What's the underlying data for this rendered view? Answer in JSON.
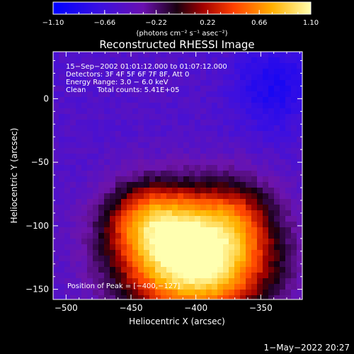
{
  "chart_data": {
    "type": "heatmap",
    "title": "Reconstructed RHESSI Image",
    "xlabel": "Heliocentric X (arcsec)",
    "ylabel": "Heliocentric Y (arcsec)",
    "xlim": [
      -510,
      -318
    ],
    "ylim": [
      -158,
      37
    ],
    "x_ticks": [
      -500,
      -450,
      -400,
      -350
    ],
    "x_tick_labels": [
      "−500",
      "−450",
      "−400",
      "−350"
    ],
    "y_ticks": [
      -150,
      -100,
      -50,
      0
    ],
    "y_tick_labels": [
      "−150",
      "−100",
      "−50",
      "0"
    ],
    "colorbar": {
      "range": [
        -1.1,
        1.1
      ],
      "ticks": [
        -1.1,
        -0.66,
        -0.22,
        0.22,
        0.66,
        1.1
      ],
      "tick_labels": [
        "−1.10",
        "−0.66",
        "−0.22",
        "0.22",
        "0.66",
        "1.10"
      ],
      "units_label": "(photons cm⁻² s⁻¹ asec⁻²)"
    },
    "info_lines": [
      "15−Sep−2002 01:01:12.000 to 01:07:12.000",
      "Detectors: 3F 4F 5F 6F 7F 8F, Att 0",
      "Energy Range: 3.0 − 6.0 keV",
      "Clean     Total counts: 5.41E+05"
    ],
    "peak_label": "Position of Peak = [−400,−127]",
    "peak": [
      -400,
      -127
    ],
    "emission_sources": [
      {
        "x": -400,
        "y": -127,
        "amplitude": 1.05,
        "sx": 55,
        "sy": 45
      },
      {
        "x": -435,
        "y": -95,
        "amplitude": 0.45,
        "sx": 35,
        "sy": 30
      },
      {
        "x": -370,
        "y": -90,
        "amplitude": 0.25,
        "sx": 30,
        "sy": 30
      }
    ],
    "background_level": -0.55,
    "low_region": {
      "x": -340,
      "y": 10,
      "amplitude": -0.35,
      "sx": 30,
      "sy": 35
    }
  },
  "footer": {
    "timestamp": "1−May−2022 20:27"
  }
}
